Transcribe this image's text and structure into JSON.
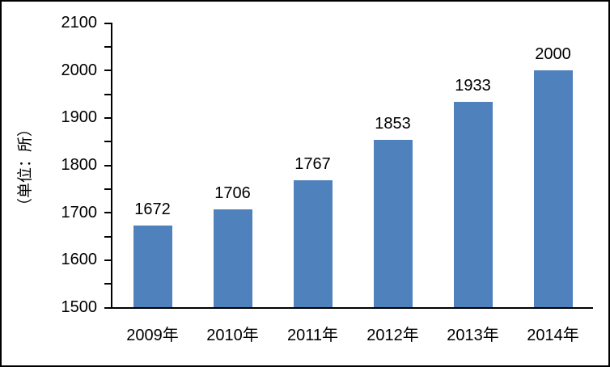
{
  "frame": {
    "background_color": "#FFFFFF",
    "border_color": "#000000"
  },
  "chart_data": {
    "type": "bar",
    "title": "",
    "categories": [
      "2009年",
      "2010年",
      "2011年",
      "2012年",
      "2013年",
      "2014年"
    ],
    "values": [
      1672,
      1706,
      1767,
      1853,
      1933,
      2000
    ],
    "data_labels": [
      "1672",
      "1706",
      "1767",
      "1853",
      "1933",
      "2000"
    ],
    "xlabel": "",
    "ylabel": "（单位：所）",
    "ylim": [
      1500,
      2100
    ],
    "ytick_major_step": 100,
    "ytick_minor_step": 50,
    "ytick_labels": [
      "1500",
      "1600",
      "1700",
      "1800",
      "1900",
      "2000",
      "2100"
    ],
    "grid": false,
    "legend_position": "none",
    "bar_color": "#4F81BD",
    "axis_color": "#000000",
    "text_color": "#000000"
  }
}
